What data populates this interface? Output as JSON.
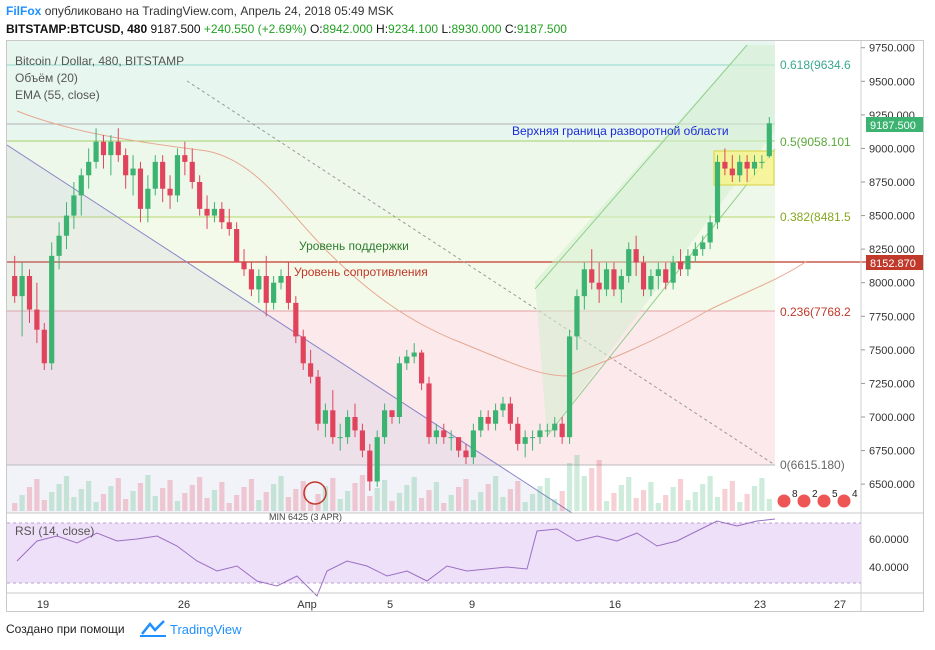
{
  "header": {
    "brand": "FilFox",
    "published": "опубликовано на TradingView.com, Апрель 24, 2018 05:49 MSK",
    "symbol": "BITSTAMP:BTCUSD, 480",
    "last": "9187.500",
    "change": "+240.550 (+2.69%)",
    "o_label": "O:",
    "o_value": "8942.000",
    "h_label": "H:",
    "h_value": "9234.100",
    "l_label": "L:",
    "l_value": "8930.000",
    "c_label": "C:",
    "c_value": "9187.500"
  },
  "legend": {
    "title": "Bitcoin / Dollar, 480, BITSTAMP",
    "volume": "Объём (20)",
    "ema": "EMA (55, close)"
  },
  "annotations": {
    "upper_boundary": "Верхняя граница разворотной области",
    "support": "Уровень поддержки",
    "resistance": "Уровень сопротивления",
    "low_label": "MIN 6425 (3 APR)"
  },
  "fib_labels": {
    "f0618": "0.618(9634.6",
    "f05": "0.5(9058.101",
    "f0382": "0.382(8481.5",
    "f0236": "0.236(7768.2",
    "f0": "0(6615.180)"
  },
  "price_tags": {
    "last": "9187.500",
    "level": "8152.870"
  },
  "rsi": {
    "title": "RSI (14, close)"
  },
  "footer": {
    "made_with": "Создано при помощи",
    "tv": "TradingView"
  },
  "events": [
    {
      "count": "8"
    },
    {
      "count": "2"
    },
    {
      "count": "5"
    },
    {
      "count": "4"
    }
  ],
  "colors": {
    "up": "#3cb371",
    "down": "#e0445c",
    "accent": "#1e90ff",
    "level": "#c0392b",
    "support_text": "#2e7d32",
    "rsi_fill": "#e9d6f7"
  },
  "chart_data": {
    "type": "candlestick",
    "ylim": [
      6300,
      9800
    ],
    "y_ticks": [
      "9750.000",
      "9500.000",
      "9250.000",
      "9000.000",
      "8750.000",
      "8500.000",
      "8250.000",
      "8000.000",
      "7750.000",
      "7500.000",
      "7250.000",
      "7000.000",
      "6750.000",
      "6500.000"
    ],
    "x_ticks": [
      "19",
      "26",
      "Апр",
      "5",
      "9",
      "16",
      "23",
      "27"
    ],
    "rsi_ticks": [
      "60.0000",
      "40.0000"
    ],
    "fib_levels": [
      9634.6,
      9058.101,
      8481.5,
      7768.2,
      6615.18
    ],
    "horizontal_level": 8152.87,
    "candles": [
      [
        8050,
        8200,
        7850,
        7900
      ],
      [
        7900,
        8150,
        7600,
        8050
      ],
      [
        8050,
        8100,
        7700,
        7800
      ],
      [
        7800,
        8000,
        7550,
        7650
      ],
      [
        7650,
        7700,
        7350,
        7400
      ],
      [
        7400,
        8300,
        7350,
        8200
      ],
      [
        8200,
        8450,
        8100,
        8350
      ],
      [
        8350,
        8600,
        8250,
        8500
      ],
      [
        8500,
        8750,
        8400,
        8650
      ],
      [
        8650,
        8850,
        8500,
        8800
      ],
      [
        8800,
        9000,
        8700,
        8900
      ],
      [
        8900,
        9150,
        8850,
        9050
      ],
      [
        9050,
        9100,
        8850,
        8950
      ],
      [
        8950,
        9100,
        8800,
        9050
      ],
      [
        9050,
        9150,
        8900,
        8950
      ],
      [
        8950,
        9000,
        8700,
        8800
      ],
      [
        8800,
        8950,
        8650,
        8850
      ],
      [
        8850,
        8900,
        8450,
        8550
      ],
      [
        8550,
        8800,
        8450,
        8700
      ],
      [
        8700,
        8950,
        8650,
        8900
      ],
      [
        8900,
        8950,
        8600,
        8700
      ],
      [
        8700,
        8800,
        8550,
        8650
      ],
      [
        8650,
        9000,
        8600,
        8950
      ],
      [
        8950,
        9050,
        8800,
        8900
      ],
      [
        8900,
        9000,
        8700,
        8750
      ],
      [
        8750,
        8800,
        8500,
        8550
      ],
      [
        8550,
        8650,
        8400,
        8500
      ],
      [
        8500,
        8600,
        8450,
        8550
      ],
      [
        8550,
        8600,
        8400,
        8450
      ],
      [
        8450,
        8550,
        8350,
        8400
      ],
      [
        8400,
        8450,
        8150,
        8150
      ],
      [
        8150,
        8250,
        8050,
        8100
      ],
      [
        8100,
        8150,
        7900,
        7950
      ],
      [
        7950,
        8100,
        7850,
        8050
      ],
      [
        8050,
        8200,
        7750,
        7850
      ],
      [
        7850,
        8050,
        7800,
        8000
      ],
      [
        8000,
        8100,
        7950,
        8050
      ],
      [
        8050,
        8150,
        7800,
        7850
      ],
      [
        7850,
        7900,
        7550,
        7600
      ],
      [
        7600,
        7650,
        7350,
        7400
      ],
      [
        7400,
        7500,
        7250,
        7300
      ],
      [
        7300,
        7350,
        6900,
        6950
      ],
      [
        6950,
        7100,
        6850,
        7050
      ],
      [
        7050,
        7200,
        6800,
        6850
      ],
      [
        6850,
        6950,
        6750,
        6850
      ],
      [
        6850,
        7050,
        6800,
        7000
      ],
      [
        7000,
        7100,
        6850,
        6900
      ],
      [
        6900,
        6950,
        6700,
        6750
      ],
      [
        6750,
        6800,
        6450,
        6520
      ],
      [
        6520,
        6900,
        6480,
        6850
      ],
      [
        6850,
        7100,
        6800,
        7050
      ],
      [
        7050,
        7050,
        6950,
        7000
      ],
      [
        7000,
        7450,
        6950,
        7400
      ],
      [
        7400,
        7500,
        7350,
        7450
      ],
      [
        7450,
        7550,
        7400,
        7480
      ],
      [
        7480,
        7500,
        7200,
        7250
      ],
      [
        7250,
        7300,
        6800,
        6850
      ],
      [
        6850,
        6950,
        6800,
        6900
      ],
      [
        6900,
        6950,
        6800,
        6850
      ],
      [
        6850,
        6900,
        6750,
        6850
      ],
      [
        6850,
        6850,
        6700,
        6750
      ],
      [
        6750,
        6800,
        6650,
        6700
      ],
      [
        6700,
        6950,
        6650,
        6900
      ],
      [
        6900,
        7050,
        6850,
        7000
      ],
      [
        7000,
        7050,
        6900,
        6950
      ],
      [
        6950,
        7100,
        6900,
        7050
      ],
      [
        7050,
        7150,
        7000,
        7100
      ],
      [
        7100,
        7150,
        6900,
        6950
      ],
      [
        6950,
        7000,
        6750,
        6800
      ],
      [
        6800,
        6900,
        6700,
        6850
      ],
      [
        6850,
        6900,
        6750,
        6850
      ],
      [
        6850,
        6950,
        6800,
        6900
      ],
      [
        6900,
        6950,
        6850,
        6900
      ],
      [
        6900,
        7000,
        6850,
        6950
      ],
      [
        6950,
        7000,
        6800,
        6850
      ],
      [
        6850,
        7650,
        6800,
        7600
      ],
      [
        7600,
        7950,
        7500,
        7900
      ],
      [
        7900,
        8150,
        7800,
        8100
      ],
      [
        8100,
        8250,
        7950,
        8000
      ],
      [
        8000,
        8150,
        7850,
        7950
      ],
      [
        7950,
        8150,
        7900,
        8100
      ],
      [
        8100,
        8150,
        7900,
        7950
      ],
      [
        7950,
        8100,
        7850,
        8050
      ],
      [
        8050,
        8300,
        8000,
        8250
      ],
      [
        8250,
        8350,
        8050,
        8150
      ],
      [
        8150,
        8200,
        7900,
        7950
      ],
      [
        7950,
        8100,
        7900,
        8050
      ],
      [
        8050,
        8150,
        7950,
        8100
      ],
      [
        8100,
        8150,
        7950,
        8000
      ],
      [
        8000,
        8200,
        7950,
        8150
      ],
      [
        8150,
        8250,
        8050,
        8100
      ],
      [
        8100,
        8250,
        8050,
        8200
      ],
      [
        8200,
        8300,
        8150,
        8250
      ],
      [
        8250,
        8350,
        8200,
        8300
      ],
      [
        8300,
        8500,
        8250,
        8450
      ],
      [
        8450,
        8950,
        8400,
        8900
      ],
      [
        8900,
        9000,
        8800,
        8850
      ],
      [
        8850,
        8950,
        8750,
        8800
      ],
      [
        8800,
        8950,
        8750,
        8900
      ],
      [
        8900,
        8950,
        8750,
        8850
      ],
      [
        8850,
        8950,
        8800,
        8900
      ],
      [
        8900,
        8950,
        8850,
        8900
      ],
      [
        8942,
        9234,
        8930,
        9187.5
      ]
    ]
  }
}
